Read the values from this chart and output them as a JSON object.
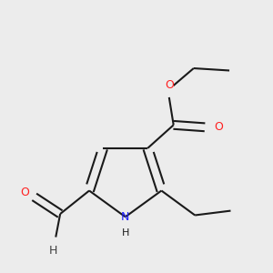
{
  "background_color": "#ececec",
  "bond_color": "#1a1a1a",
  "N_color": "#2020ff",
  "O_color": "#ff2020",
  "H_color": "#404040",
  "lw": 1.5,
  "dbo": 0.018,
  "figsize": [
    3.0,
    3.0
  ],
  "dpi": 100,
  "xlim": [
    1.5,
    6.5
  ],
  "ylim": [
    0.5,
    6.5
  ]
}
